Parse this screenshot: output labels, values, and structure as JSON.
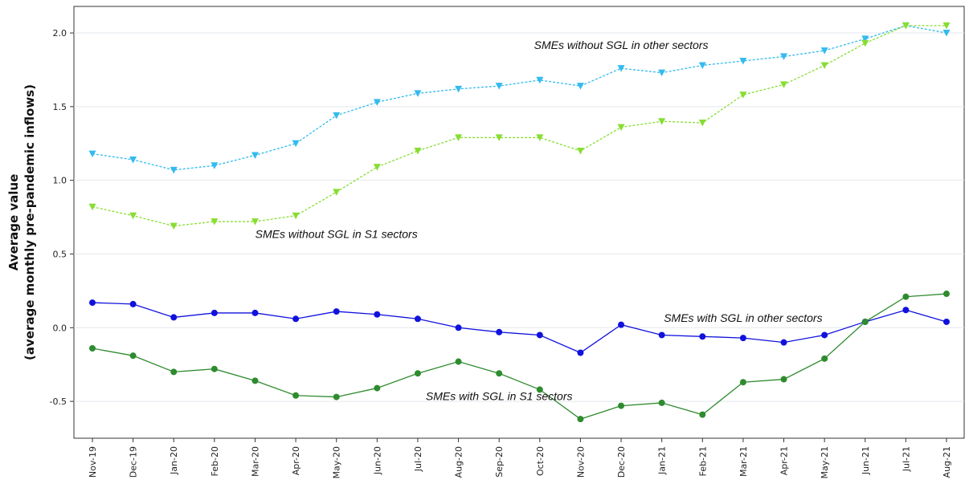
{
  "chart_data": {
    "type": "line",
    "ylabel_line1": "Average value",
    "ylabel_line2": "(average monthly pre-pandemic inflows)",
    "ylim": [
      -0.75,
      2.18
    ],
    "yticks": [
      -0.5,
      0.0,
      0.5,
      1.0,
      1.5,
      2.0
    ],
    "ytick_labels": [
      "-0.5",
      "0.0",
      "0.5",
      "1.0",
      "1.5",
      "2.0"
    ],
    "grid": "horizontal",
    "categories": [
      "Nov-19",
      "Dec-19",
      "Jan-20",
      "Feb-20",
      "Mar-20",
      "Apr-20",
      "May-20",
      "Jun-20",
      "Jul-20",
      "Aug-20",
      "Sep-20",
      "Oct-20",
      "Nov-20",
      "Dec-20",
      "Jan-21",
      "Feb-21",
      "Mar-21",
      "Apr-21",
      "May-21",
      "Jun-21",
      "Jul-21",
      "Aug-21"
    ],
    "series": [
      {
        "name": "SMEs without SGL in other sectors",
        "color": "#33bbee",
        "marker": "triangle-down",
        "dashed": true,
        "values": [
          1.18,
          1.14,
          1.07,
          1.1,
          1.17,
          1.25,
          1.44,
          1.53,
          1.59,
          1.62,
          1.64,
          1.68,
          1.64,
          1.76,
          1.73,
          1.78,
          1.81,
          1.84,
          1.88,
          1.96,
          2.05,
          2.0
        ]
      },
      {
        "name": "SMEs without SGL in S1 sectors",
        "color": "#88dd33",
        "marker": "triangle-down",
        "dashed": true,
        "values": [
          0.82,
          0.76,
          0.69,
          0.72,
          0.72,
          0.76,
          0.92,
          1.09,
          1.2,
          1.29,
          1.29,
          1.29,
          1.2,
          1.36,
          1.4,
          1.39,
          1.58,
          1.65,
          1.78,
          1.93,
          2.05,
          2.05
        ]
      },
      {
        "name": "SMEs with SGL in other sectors",
        "color": "#1111dd",
        "marker": "circle",
        "dashed": false,
        "values": [
          0.17,
          0.16,
          0.07,
          0.1,
          0.1,
          0.06,
          0.11,
          0.09,
          0.06,
          0.0,
          -0.03,
          -0.05,
          -0.17,
          0.02,
          -0.05,
          -0.06,
          -0.07,
          -0.1,
          -0.05,
          0.04,
          0.12,
          0.04
        ]
      },
      {
        "name": "SMEs with SGL in S1 sectors",
        "color": "#2e8b2e",
        "marker": "circle",
        "dashed": false,
        "values": [
          -0.14,
          -0.19,
          -0.3,
          -0.28,
          -0.36,
          -0.46,
          -0.47,
          -0.41,
          -0.31,
          -0.23,
          -0.31,
          -0.42,
          -0.62,
          -0.53,
          -0.51,
          -0.59,
          -0.37,
          -0.35,
          -0.21,
          0.04,
          0.21,
          0.23
        ]
      }
    ],
    "annotations": [
      {
        "text": "SMEs without SGL in other sectors",
        "x": "Dec-20",
        "y": 1.89,
        "anchor": "middle"
      },
      {
        "text": "SMEs without SGL in S1 sectors",
        "x": "May-20",
        "y": 0.61,
        "anchor": "middle"
      },
      {
        "text": "SMEs with SGL in other sectors",
        "x": "Mar-21",
        "y": 0.04,
        "anchor": "middle"
      },
      {
        "text": "SMEs with SGL in S1 sectors",
        "x": "Sep-20",
        "y": -0.49,
        "anchor": "middle"
      }
    ]
  }
}
